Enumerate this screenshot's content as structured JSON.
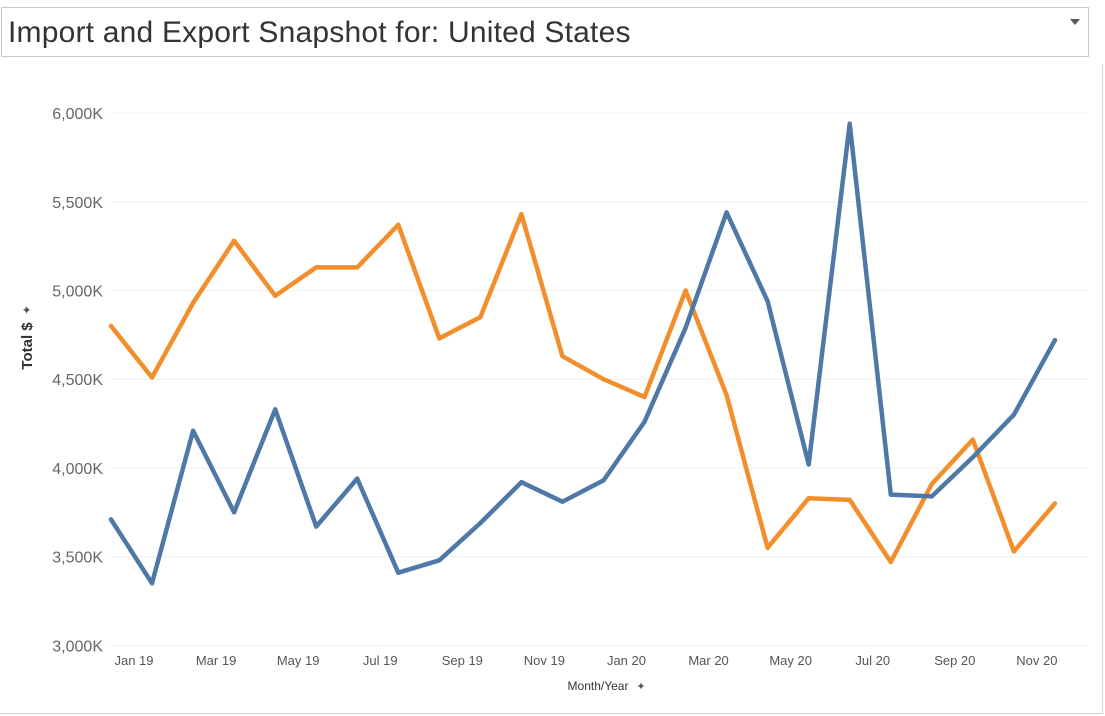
{
  "header": {
    "title": "Import and Export Snapshot for: United States",
    "dropdown_icon": "caret-down-icon"
  },
  "chart_data": {
    "type": "line",
    "title": "",
    "ylabel": "Total $",
    "xlabel": "Month/Year",
    "axis_pin_icon": "pin-icon",
    "ylim": [
      2980,
      6220
    ],
    "y_ticks": [
      {
        "value": 3000,
        "label": "3,000K"
      },
      {
        "value": 3500,
        "label": "3,500K"
      },
      {
        "value": 4000,
        "label": "4,000K"
      },
      {
        "value": 4500,
        "label": "4,500K"
      },
      {
        "value": 5000,
        "label": "5,000K"
      },
      {
        "value": 5500,
        "label": "5,500K"
      },
      {
        "value": 6000,
        "label": "6,000K"
      }
    ],
    "x": [
      "2019-01",
      "2019-02",
      "2019-03",
      "2019-04",
      "2019-05",
      "2019-06",
      "2019-07",
      "2019-08",
      "2019-09",
      "2019-10",
      "2019-11",
      "2019-12",
      "2020-01",
      "2020-02",
      "2020-03",
      "2020-04",
      "2020-05",
      "2020-06",
      "2020-07",
      "2020-08",
      "2020-09",
      "2020-10",
      "2020-11",
      "2020-12"
    ],
    "x_tick_labels": [
      {
        "x": "2019-01",
        "label": "Jan 19"
      },
      {
        "x": "2019-03",
        "label": "Mar 19"
      },
      {
        "x": "2019-05",
        "label": "May 19"
      },
      {
        "x": "2019-07",
        "label": "Jul 19"
      },
      {
        "x": "2019-09",
        "label": "Sep 19"
      },
      {
        "x": "2019-11",
        "label": "Nov 19"
      },
      {
        "x": "2020-01",
        "label": "Jan 20"
      },
      {
        "x": "2020-03",
        "label": "Mar 20"
      },
      {
        "x": "2020-05",
        "label": "May 20"
      },
      {
        "x": "2020-07",
        "label": "Jul 20"
      },
      {
        "x": "2020-09",
        "label": "Sep 20"
      },
      {
        "x": "2020-11",
        "label": "Nov 20"
      }
    ],
    "grid": true,
    "series": [
      {
        "color": "#f28e2b",
        "values": [
          4800,
          4510,
          4930,
          5280,
          4970,
          5130,
          5130,
          5370,
          4730,
          4850,
          5430,
          4630,
          4500,
          4400,
          5000,
          4410,
          3550,
          3830,
          3820,
          3470,
          3910,
          4160,
          3530,
          3800
        ]
      },
      {
        "color": "#4e79a7",
        "values": [
          3710,
          3350,
          4210,
          3750,
          4330,
          3670,
          3940,
          3410,
          3480,
          3690,
          3920,
          3810,
          3930,
          4260,
          4790,
          5440,
          4940,
          4020,
          5940,
          3850,
          3840,
          4060,
          4300,
          4720
        ]
      }
    ]
  }
}
